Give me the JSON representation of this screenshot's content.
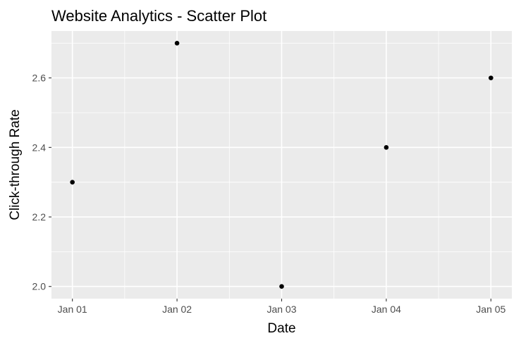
{
  "chart_data": {
    "type": "scatter",
    "title": "Website Analytics - Scatter Plot",
    "xlabel": "Date",
    "ylabel": "Click-through Rate",
    "x": [
      "Jan 01",
      "Jan 02",
      "Jan 03",
      "Jan 04",
      "Jan 05"
    ],
    "y": [
      2.3,
      2.7,
      2.0,
      2.4,
      2.6
    ],
    "ylim": [
      1.965,
      2.735
    ],
    "yticks": [
      2.0,
      2.2,
      2.4,
      2.6
    ],
    "ytick_labels": [
      "2.0",
      "2.2",
      "2.4",
      "2.6"
    ],
    "grid": true,
    "legend": "none",
    "colors": {
      "panel": "#ebebeb",
      "grid": "#ffffff",
      "point": "#000000",
      "tick_label": "#4d4d4d",
      "tick": "#333333"
    }
  }
}
